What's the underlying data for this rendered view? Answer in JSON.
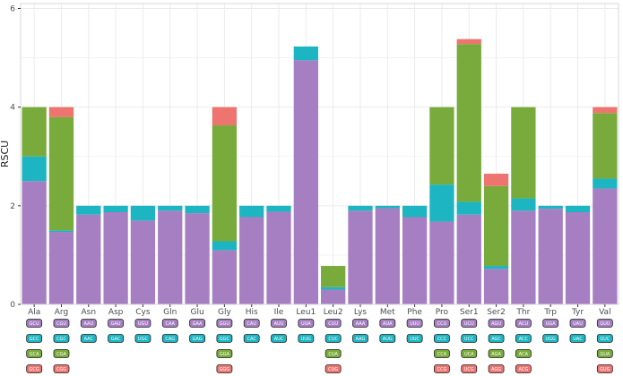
{
  "chart_data": {
    "type": "bar",
    "stacked": true,
    "ylabel": "RSCU",
    "xlabel": "",
    "ylim": [
      0,
      6.1
    ],
    "yticks": [
      0,
      2,
      4,
      6
    ],
    "colors": {
      "purple": "#a67fc2",
      "teal": "#1cb5c1",
      "green": "#78ab3b",
      "red": "#ee7470",
      "grid": "#ebebeb",
      "panel_border": "#d9d9d9"
    },
    "categories": [
      "Ala",
      "Arg",
      "Asn",
      "Asp",
      "Cys",
      "Gln",
      "Glu",
      "Gly",
      "His",
      "Ile",
      "Leu1",
      "Leu2",
      "Lys",
      "Met",
      "Phe",
      "Pro",
      "Ser1",
      "Ser2",
      "Thr",
      "Trp",
      "Tyr",
      "Val"
    ],
    "stacks": [
      {
        "aa": "Ala",
        "segments": [
          {
            "codon": "GCU",
            "color": "purple",
            "value": 2.5
          },
          {
            "codon": "GCC",
            "color": "teal",
            "value": 0.5
          },
          {
            "codon": "GCA",
            "color": "green",
            "value": 1.0
          },
          {
            "codon": "GCG",
            "color": "red",
            "value": 0.0
          }
        ]
      },
      {
        "aa": "Arg",
        "segments": [
          {
            "codon": "CGU",
            "color": "purple",
            "value": 1.47
          },
          {
            "codon": "CGC",
            "color": "teal",
            "value": 0.03
          },
          {
            "codon": "CGA",
            "color": "green",
            "value": 2.3
          },
          {
            "codon": "CGG",
            "color": "red",
            "value": 0.2
          }
        ]
      },
      {
        "aa": "Asn",
        "segments": [
          {
            "codon": "AAU",
            "color": "purple",
            "value": 1.82
          },
          {
            "codon": "AAC",
            "color": "teal",
            "value": 0.18
          }
        ]
      },
      {
        "aa": "Asp",
        "segments": [
          {
            "codon": "GAU",
            "color": "purple",
            "value": 1.87
          },
          {
            "codon": "GAC",
            "color": "teal",
            "value": 0.13
          }
        ]
      },
      {
        "aa": "Cys",
        "segments": [
          {
            "codon": "UGU",
            "color": "purple",
            "value": 1.7
          },
          {
            "codon": "UGC",
            "color": "teal",
            "value": 0.3
          }
        ]
      },
      {
        "aa": "Gln",
        "segments": [
          {
            "codon": "CAA",
            "color": "purple",
            "value": 1.9
          },
          {
            "codon": "CAG",
            "color": "teal",
            "value": 0.1
          }
        ]
      },
      {
        "aa": "Glu",
        "segments": [
          {
            "codon": "GAA",
            "color": "purple",
            "value": 1.85
          },
          {
            "codon": "GAG",
            "color": "teal",
            "value": 0.15
          }
        ]
      },
      {
        "aa": "Gly",
        "segments": [
          {
            "codon": "GGU",
            "color": "purple",
            "value": 1.1
          },
          {
            "codon": "GGC",
            "color": "teal",
            "value": 0.18
          },
          {
            "codon": "GGA",
            "color": "green",
            "value": 2.35
          },
          {
            "codon": "GGG",
            "color": "red",
            "value": 0.37
          }
        ]
      },
      {
        "aa": "His",
        "segments": [
          {
            "codon": "CAU",
            "color": "purple",
            "value": 1.77
          },
          {
            "codon": "CAC",
            "color": "teal",
            "value": 0.23
          }
        ]
      },
      {
        "aa": "Ile",
        "segments": [
          {
            "codon": "AUU",
            "color": "purple",
            "value": 1.88
          },
          {
            "codon": "AUC",
            "color": "teal",
            "value": 0.12
          }
        ]
      },
      {
        "aa": "Leu1",
        "segments": [
          {
            "codon": "UUA",
            "color": "purple",
            "value": 4.95
          },
          {
            "codon": "UUG",
            "color": "teal",
            "value": 0.28
          }
        ]
      },
      {
        "aa": "Leu2",
        "segments": [
          {
            "codon": "CUU",
            "color": "purple",
            "value": 0.3
          },
          {
            "codon": "CUC",
            "color": "teal",
            "value": 0.05
          },
          {
            "codon": "CUA",
            "color": "green",
            "value": 0.43
          },
          {
            "codon": "CUG",
            "color": "red",
            "value": 0.0
          }
        ]
      },
      {
        "aa": "Lys",
        "segments": [
          {
            "codon": "AAA",
            "color": "purple",
            "value": 1.9
          },
          {
            "codon": "AAG",
            "color": "teal",
            "value": 0.1
          }
        ]
      },
      {
        "aa": "Met",
        "segments": [
          {
            "codon": "AUA",
            "color": "purple",
            "value": 1.95
          },
          {
            "codon": "AUG",
            "color": "teal",
            "value": 0.05
          }
        ]
      },
      {
        "aa": "Phe",
        "segments": [
          {
            "codon": "UUU",
            "color": "purple",
            "value": 1.77
          },
          {
            "codon": "UUC",
            "color": "teal",
            "value": 0.23
          }
        ]
      },
      {
        "aa": "Pro",
        "segments": [
          {
            "codon": "CCU",
            "color": "purple",
            "value": 1.68
          },
          {
            "codon": "CCC",
            "color": "teal",
            "value": 0.75
          },
          {
            "codon": "CCA",
            "color": "green",
            "value": 1.57
          },
          {
            "codon": "CCG",
            "color": "red",
            "value": 0.0
          }
        ]
      },
      {
        "aa": "Ser1",
        "segments": [
          {
            "codon": "UCU",
            "color": "purple",
            "value": 1.82
          },
          {
            "codon": "UCC",
            "color": "teal",
            "value": 0.26
          },
          {
            "codon": "UCA",
            "color": "green",
            "value": 3.2
          },
          {
            "codon": "UCG",
            "color": "red",
            "value": 0.1
          }
        ]
      },
      {
        "aa": "Ser2",
        "segments": [
          {
            "codon": "AGU",
            "color": "purple",
            "value": 0.72
          },
          {
            "codon": "AGC",
            "color": "teal",
            "value": 0.06
          },
          {
            "codon": "AGA",
            "color": "green",
            "value": 1.62
          },
          {
            "codon": "AGG",
            "color": "red",
            "value": 0.25
          }
        ]
      },
      {
        "aa": "Thr",
        "segments": [
          {
            "codon": "ACU",
            "color": "purple",
            "value": 1.9
          },
          {
            "codon": "ACC",
            "color": "teal",
            "value": 0.25
          },
          {
            "codon": "ACA",
            "color": "green",
            "value": 1.85
          },
          {
            "codon": "ACG",
            "color": "red",
            "value": 0.0
          }
        ]
      },
      {
        "aa": "Trp",
        "segments": [
          {
            "codon": "UGA",
            "color": "purple",
            "value": 1.94
          },
          {
            "codon": "UGG",
            "color": "teal",
            "value": 0.06
          }
        ]
      },
      {
        "aa": "Tyr",
        "segments": [
          {
            "codon": "UAU",
            "color": "purple",
            "value": 1.87
          },
          {
            "codon": "UAC",
            "color": "teal",
            "value": 0.13
          }
        ]
      },
      {
        "aa": "Val",
        "segments": [
          {
            "codon": "GUU",
            "color": "purple",
            "value": 2.35
          },
          {
            "codon": "GUC",
            "color": "teal",
            "value": 0.2
          },
          {
            "codon": "GUA",
            "color": "green",
            "value": 1.33
          },
          {
            "codon": "GUG",
            "color": "red",
            "value": 0.12
          }
        ]
      }
    ]
  }
}
